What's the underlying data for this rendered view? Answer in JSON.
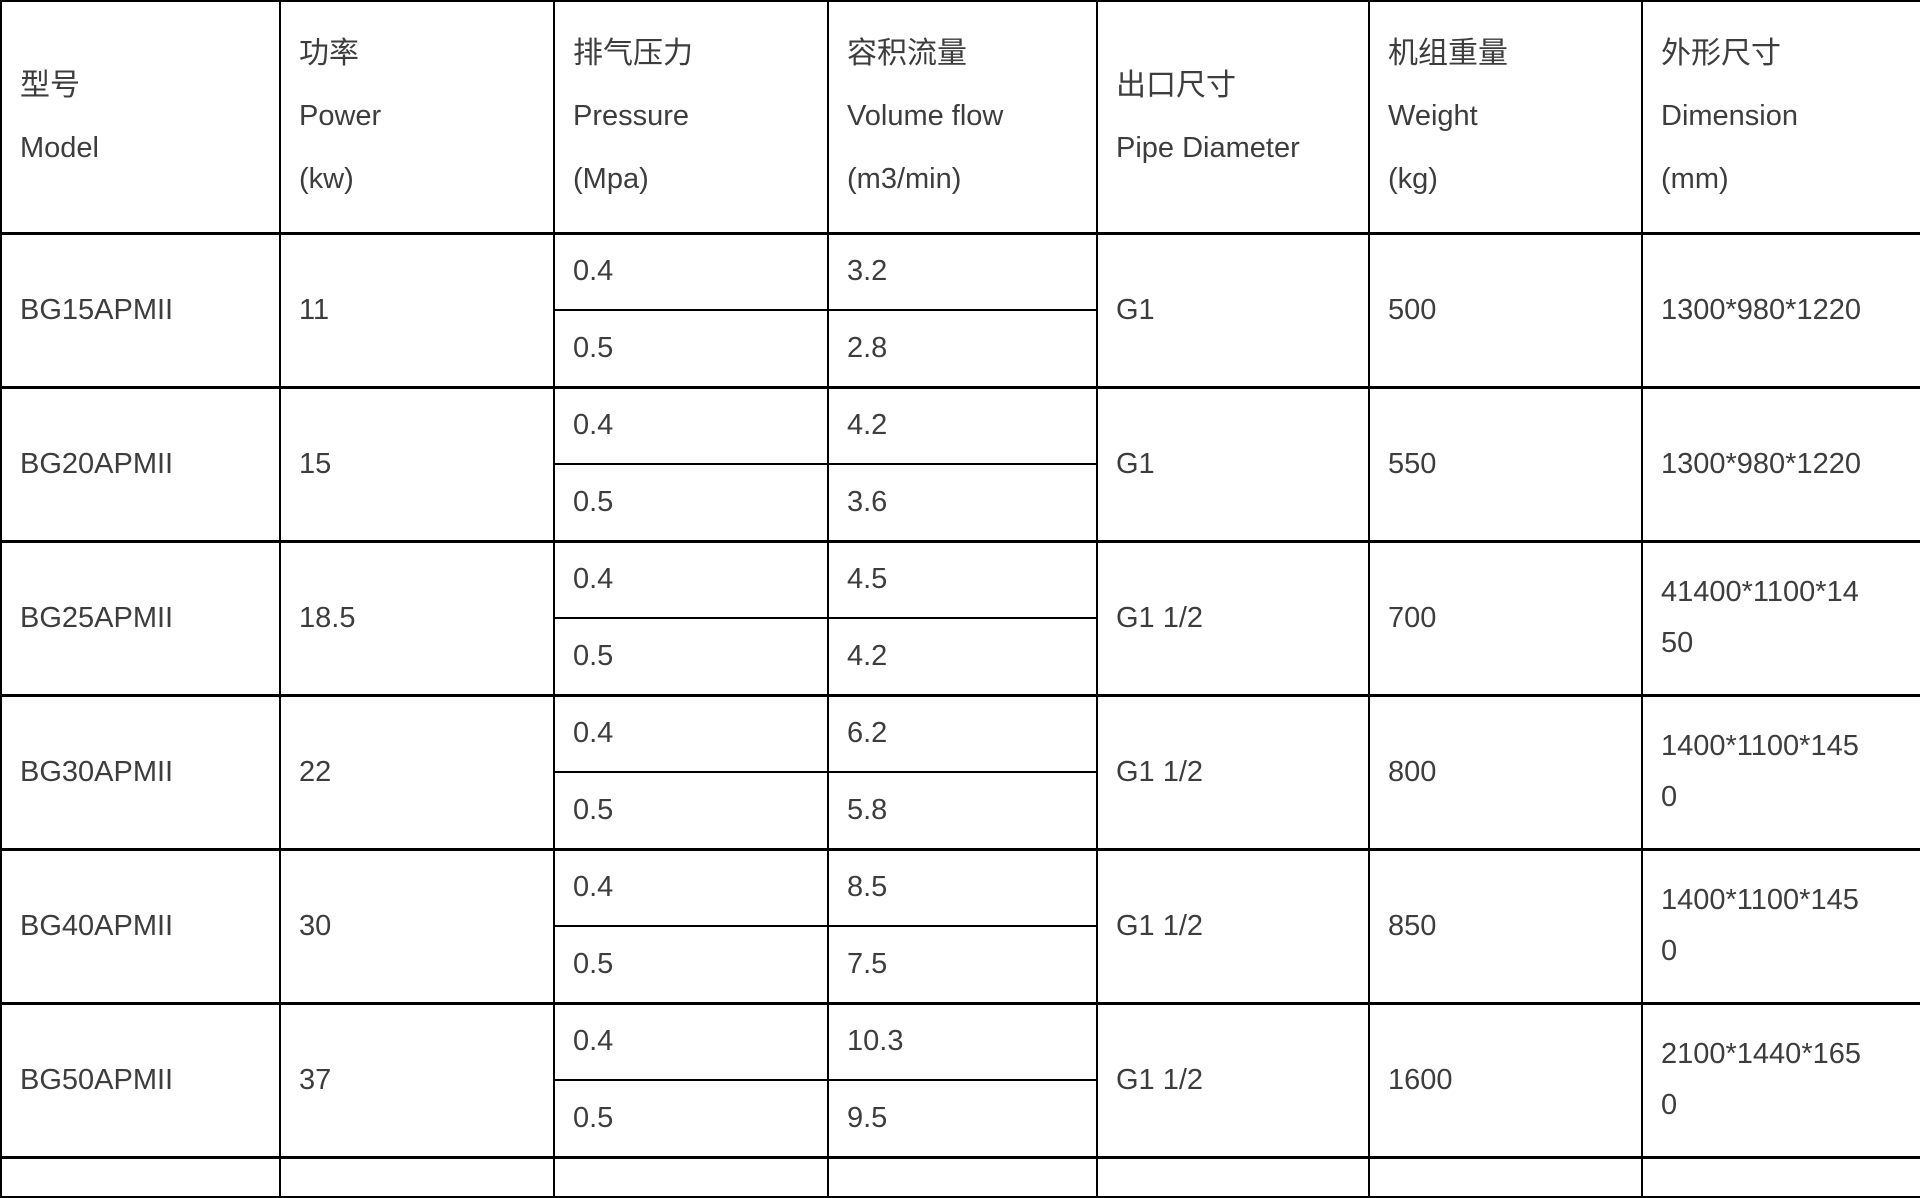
{
  "meta": {
    "background": "#ffffff",
    "border_color": "#000000",
    "text_color": "#3d3d3d"
  },
  "table": {
    "columns": [
      {
        "zh": "型号",
        "en": "Model",
        "unit": ""
      },
      {
        "zh": "功率",
        "en": "Power",
        "unit": "(kw)"
      },
      {
        "zh": "排气压力",
        "en": "Pressure",
        "unit": "(Mpa)"
      },
      {
        "zh": "容积流量",
        "en": "Volume flow",
        "unit": "(m3/min)"
      },
      {
        "zh": "出口尺寸",
        "en": "Pipe Diameter",
        "unit": ""
      },
      {
        "zh": "机组重量",
        "en": "Weight",
        "unit": "(kg)"
      },
      {
        "zh": "外形尺寸",
        "en": "Dimension",
        "unit": "(mm)"
      }
    ],
    "rows": [
      {
        "model": "BG15APMII",
        "power": "11",
        "sub": [
          {
            "pressure": "0.4",
            "flow": "3.2"
          },
          {
            "pressure": "0.5",
            "flow": "2.8"
          }
        ],
        "pipe": "G1",
        "weight": "500",
        "dimension": "1300*980*1220"
      },
      {
        "model": "BG20APMII",
        "power": "15",
        "sub": [
          {
            "pressure": "0.4",
            "flow": "4.2"
          },
          {
            "pressure": "0.5",
            "flow": "3.6"
          }
        ],
        "pipe": "G1",
        "weight": "550",
        "dimension": "1300*980*1220"
      },
      {
        "model": "BG25APMII",
        "power": "18.5",
        "sub": [
          {
            "pressure": "0.4",
            "flow": "4.5"
          },
          {
            "pressure": "0.5",
            "flow": "4.2"
          }
        ],
        "pipe": "G1 1/2",
        "weight": "700",
        "dimension": "41400*1100*1450"
      },
      {
        "model": "BG30APMII",
        "power": "22",
        "sub": [
          {
            "pressure": "0.4",
            "flow": "6.2"
          },
          {
            "pressure": "0.5",
            "flow": "5.8"
          }
        ],
        "pipe": "G1 1/2",
        "weight": "800",
        "dimension": "1400*1100*1450"
      },
      {
        "model": "BG40APMII",
        "power": "30",
        "sub": [
          {
            "pressure": "0.4",
            "flow": "8.5"
          },
          {
            "pressure": "0.5",
            "flow": "7.5"
          }
        ],
        "pipe": "G1 1/2",
        "weight": "850",
        "dimension": "1400*1100*1450"
      },
      {
        "model": "BG50APMII",
        "power": "37",
        "sub": [
          {
            "pressure": "0.4",
            "flow": "10.3"
          },
          {
            "pressure": "0.5",
            "flow": "9.5"
          }
        ],
        "pipe": "G1 1/2",
        "weight": "1600",
        "dimension": "2100*1440*1650"
      }
    ]
  }
}
